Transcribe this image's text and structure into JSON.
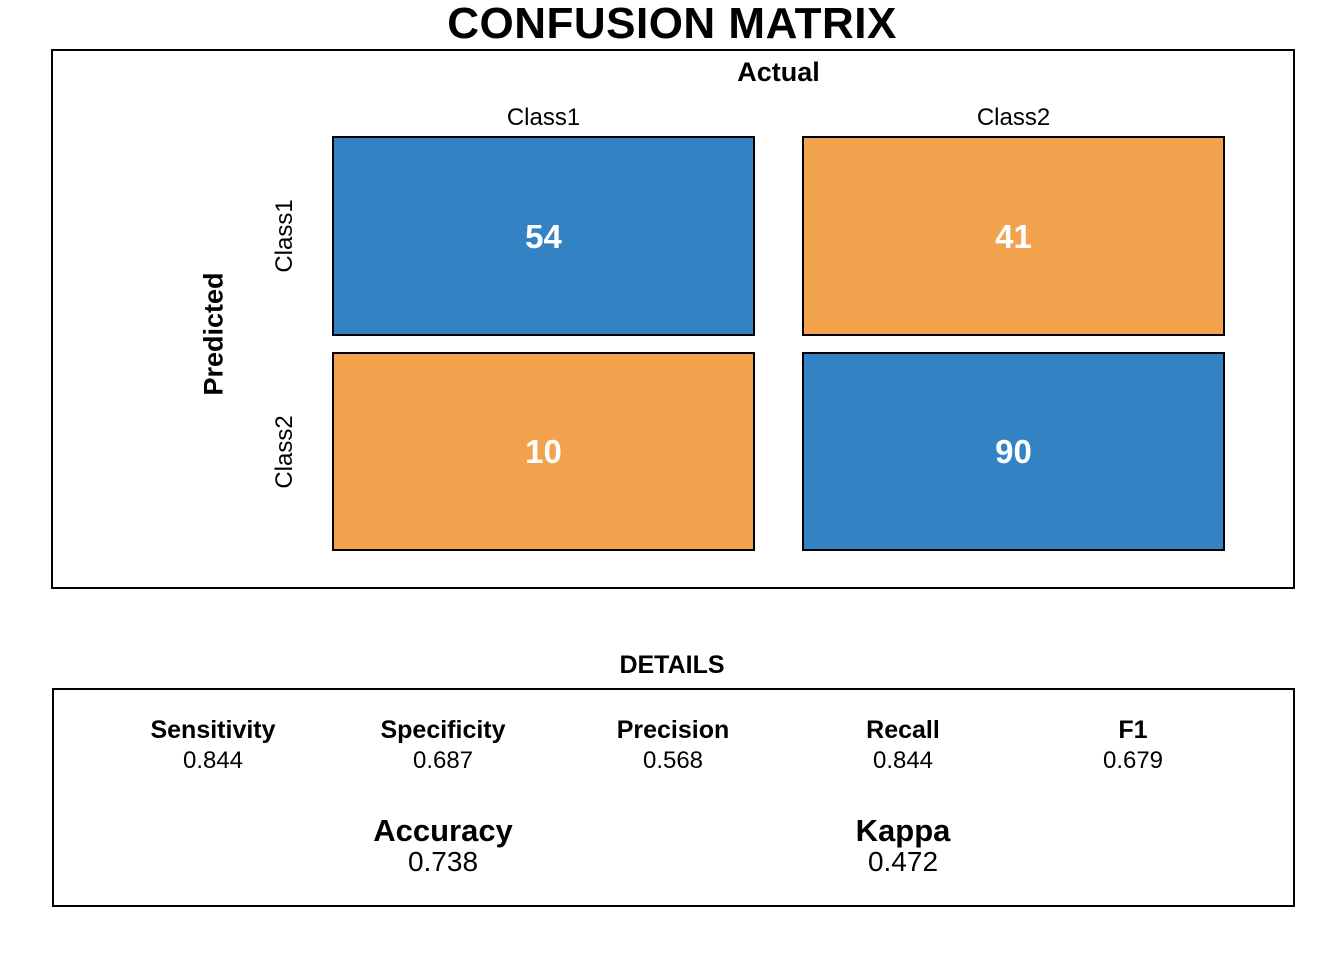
{
  "page": {
    "title": "CONFUSION MATRIX"
  },
  "colors": {
    "match_cell": "#3383C4",
    "mismatch_cell": "#F2A14D",
    "cell_text": "#FFFFFF",
    "panel_border": "#000000"
  },
  "matrix": {
    "x_axis_label": "Actual",
    "y_axis_label": "Predicted",
    "col_labels": [
      "Class1",
      "Class2"
    ],
    "row_labels": [
      "Class1",
      "Class2"
    ]
  },
  "details": {
    "title": "DETAILS",
    "metrics": [
      {
        "label": "Sensitivity",
        "value": "0.844"
      },
      {
        "label": "Specificity",
        "value": "0.687"
      },
      {
        "label": "Precision",
        "value": "0.568"
      },
      {
        "label": "Recall",
        "value": "0.844"
      },
      {
        "label": "F1",
        "value": "0.679"
      }
    ],
    "overall": [
      {
        "label": "Accuracy",
        "value": "0.738"
      },
      {
        "label": "Kappa",
        "value": "0.472"
      }
    ]
  },
  "chart_data": {
    "type": "heatmap",
    "title": "CONFUSION MATRIX",
    "xlabel": "Actual",
    "ylabel": "Predicted",
    "x_categories": [
      "Class1",
      "Class2"
    ],
    "y_categories": [
      "Class1",
      "Class2"
    ],
    "values": [
      [
        54,
        41
      ],
      [
        10,
        90
      ]
    ],
    "cell_colors": [
      [
        "#3383C4",
        "#F2A14D"
      ],
      [
        "#F2A14D",
        "#3383C4"
      ]
    ],
    "legend": "none",
    "stats": {
      "sensitivity": 0.844,
      "specificity": 0.687,
      "precision": 0.568,
      "recall": 0.844,
      "f1": 0.679,
      "accuracy": 0.738,
      "kappa": 0.472
    }
  }
}
